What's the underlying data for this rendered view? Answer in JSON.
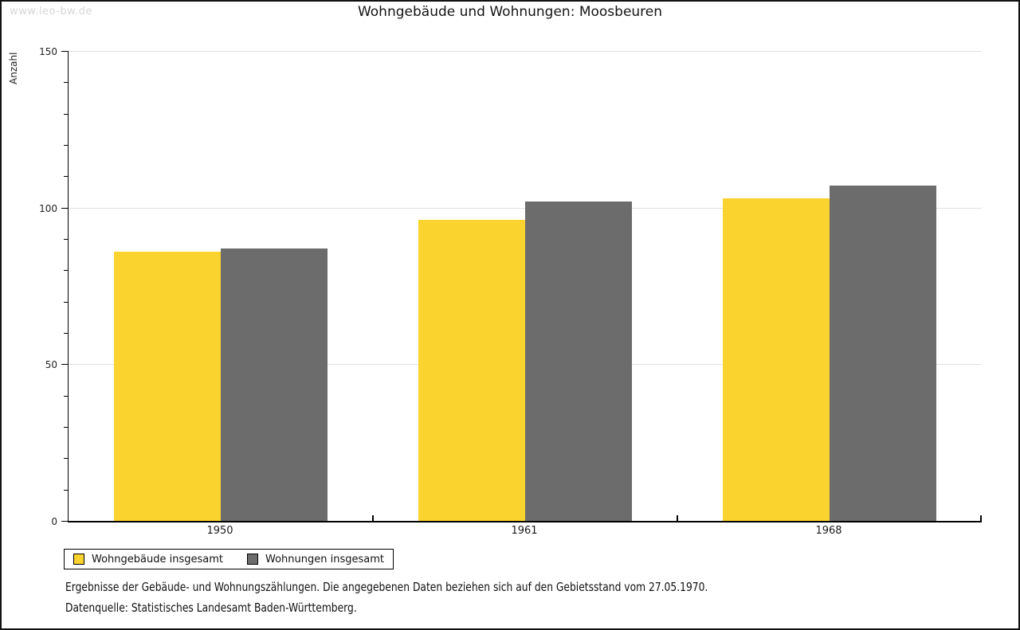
{
  "watermark": "www.leo-bw.de",
  "title": "Wohngebäude und Wohnungen: Moosbeuren",
  "chart_data": {
    "type": "bar",
    "title": "Wohngebäude und Wohnungen: Moosbeuren",
    "xlabel": "",
    "ylabel": "Anzahl",
    "categories": [
      "1950",
      "1961",
      "1968"
    ],
    "series": [
      {
        "name": "Wohngebäude insgesamt",
        "color": "#FBD32F",
        "values": [
          86,
          96,
          103
        ]
      },
      {
        "name": "Wohnungen insgesamt",
        "color": "#6C6C6C",
        "values": [
          87,
          102,
          107
        ]
      }
    ],
    "ylim": [
      0,
      150
    ],
    "yticks": [
      0,
      50,
      100,
      150
    ],
    "minor_tick_step": 10,
    "grid": "horizontal-major",
    "gridline_color": "#E0E0E0",
    "legend_position": "bottom-left"
  },
  "footer": {
    "line1": "Ergebnisse der Gebäude- und Wohnungszählungen. Die angegebenen Daten beziehen sich auf den Gebietsstand vom 27.05.1970.",
    "line2": "Datenquelle: Statistisches Landesamt Baden-Württemberg."
  }
}
